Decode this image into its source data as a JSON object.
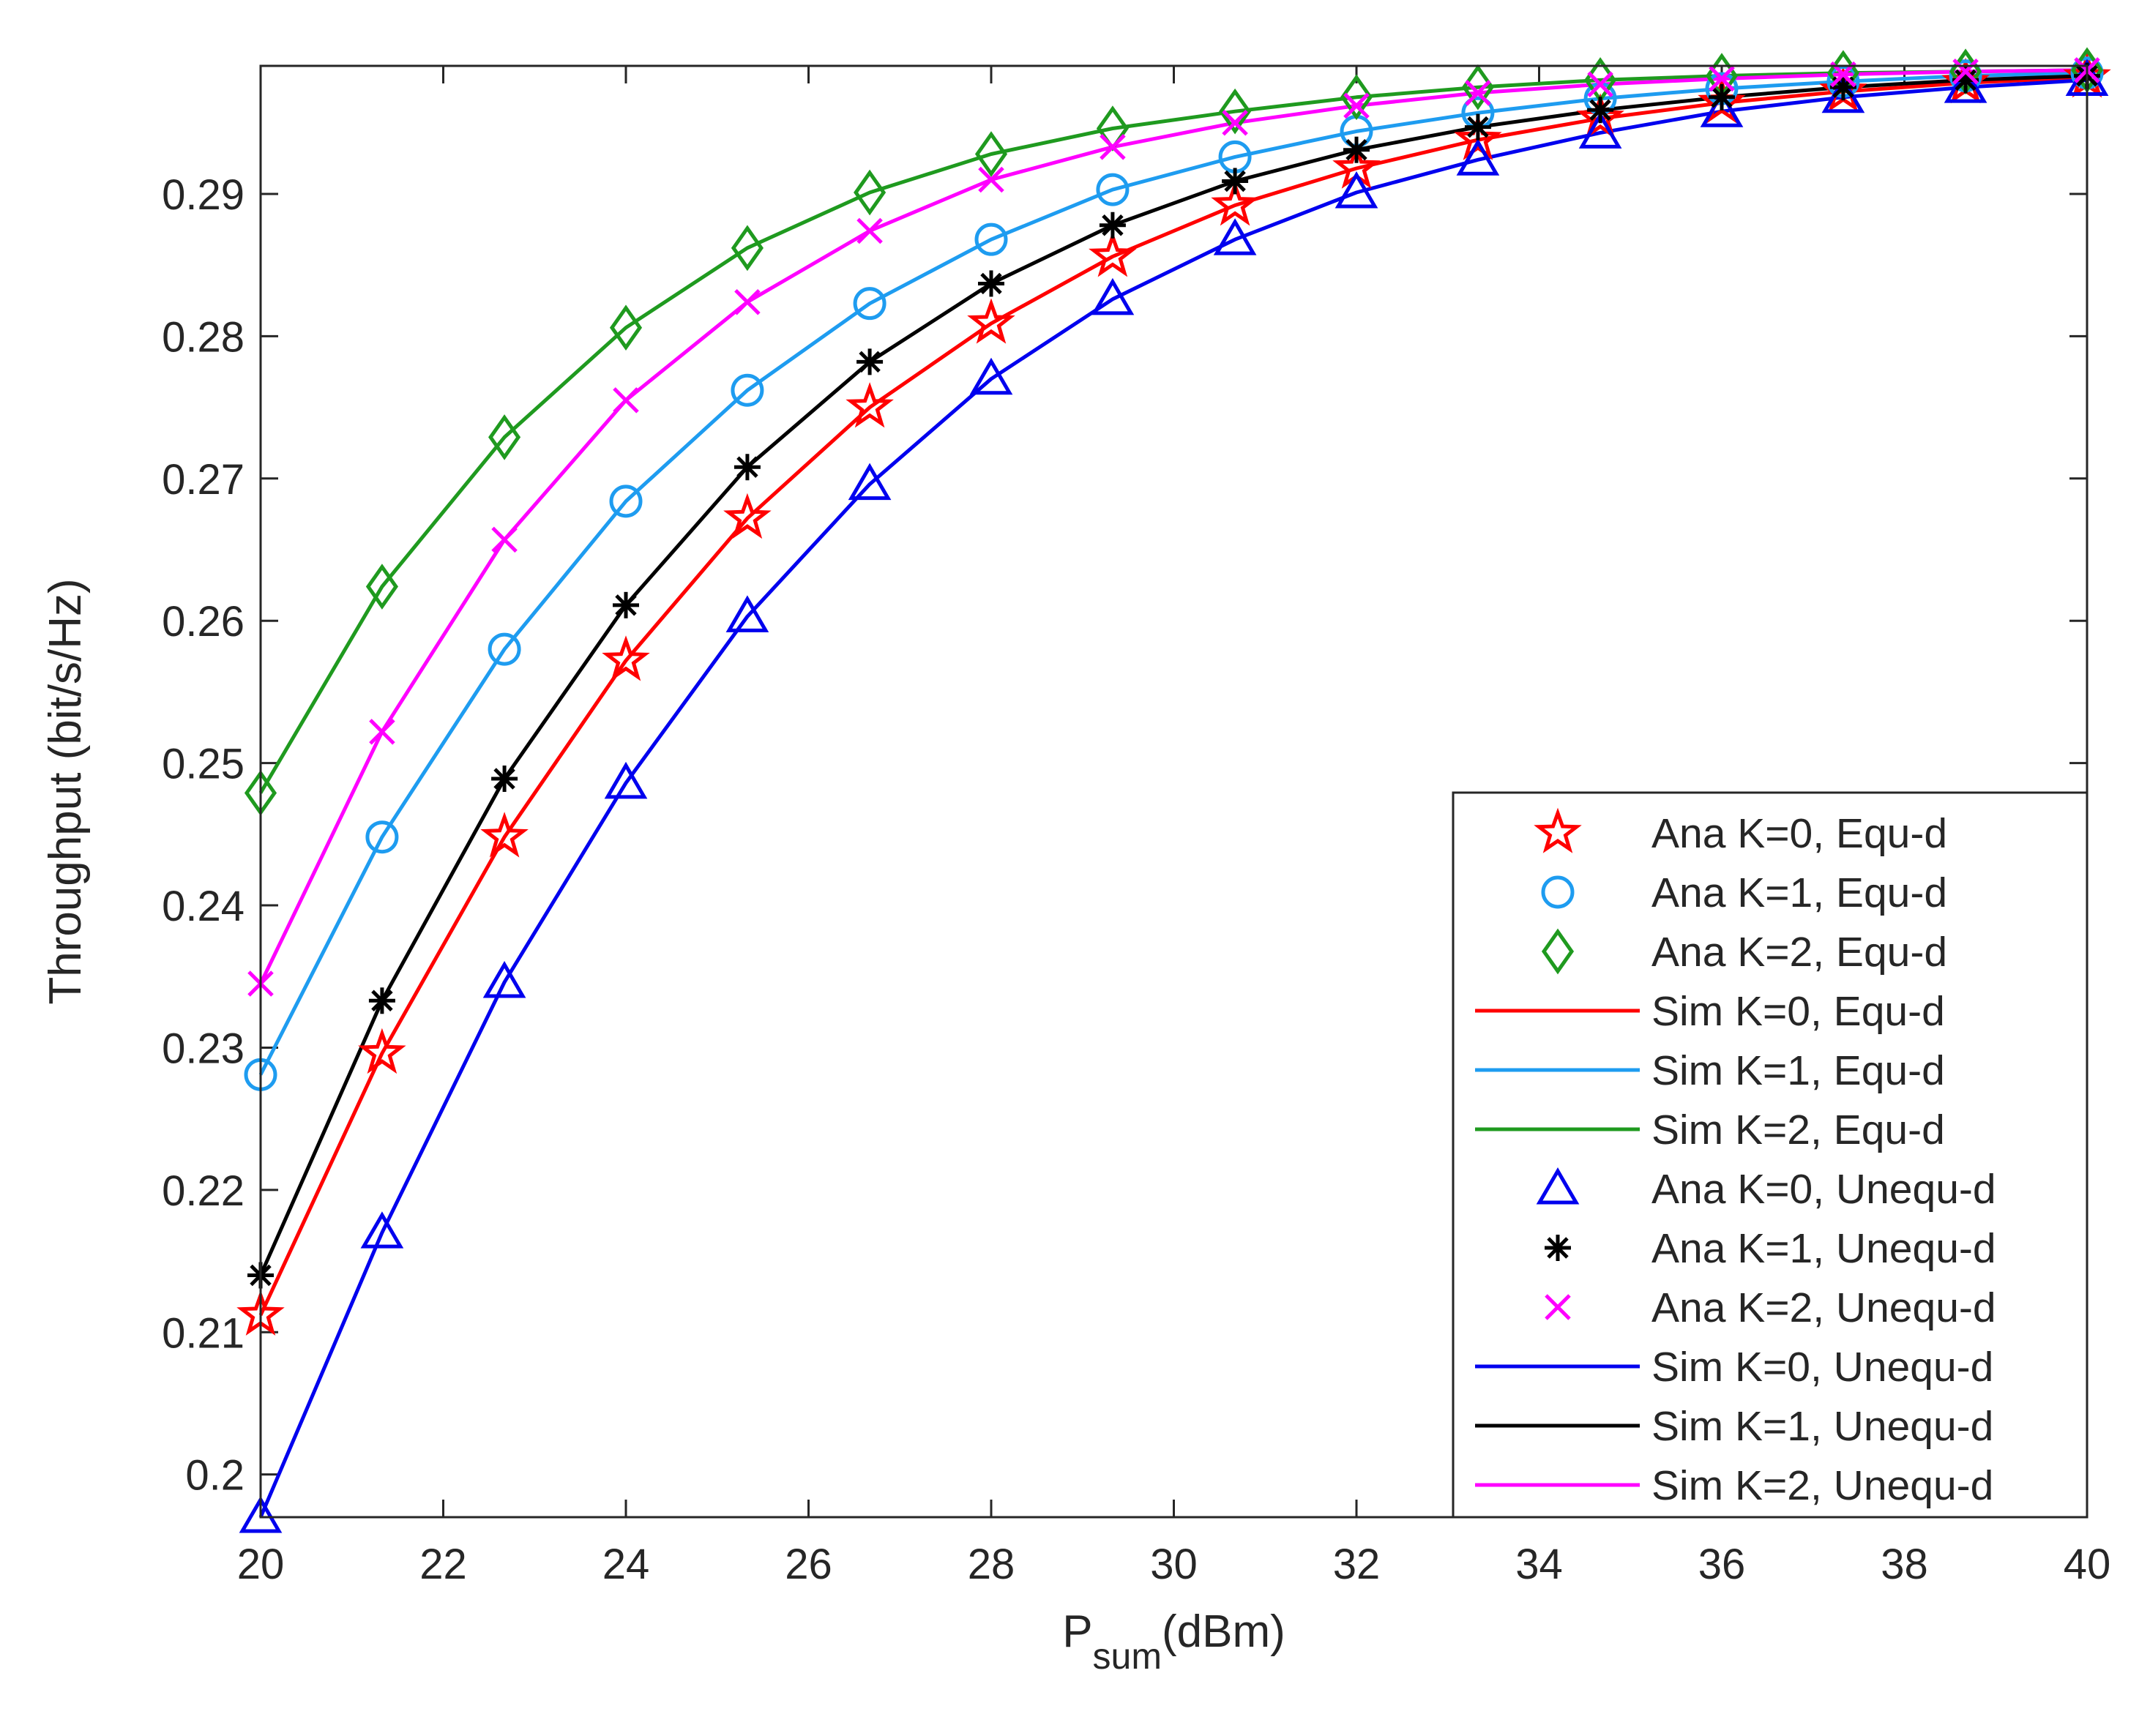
{
  "chart_data": {
    "type": "line",
    "title": "",
    "xlabel": {
      "main": "P",
      "sub": "sum",
      "unit": "(dBm)"
    },
    "ylabel": "Throughput (bit/s/Hz)",
    "xlim": [
      20,
      40
    ],
    "ylim": [
      0.197,
      0.299
    ],
    "xticks": [
      20,
      22,
      24,
      26,
      28,
      30,
      32,
      34,
      36,
      38,
      40
    ],
    "yticks": [
      0.2,
      0.21,
      0.22,
      0.23,
      0.24,
      0.25,
      0.26,
      0.27,
      0.28,
      0.29
    ],
    "ytick_labels": [
      "0.2",
      "0.21",
      "0.22",
      "0.23",
      "0.24",
      "0.25",
      "0.26",
      "0.27",
      "0.28",
      "0.29"
    ],
    "grid": false,
    "legend_position": "bottom-right",
    "x": [
      20,
      21.33,
      22.67,
      24,
      25.33,
      26.67,
      28,
      29.33,
      30.67,
      32,
      33.33,
      34.67,
      36,
      37.33,
      38.67,
      40
    ],
    "series": [
      {
        "name": "Ana K=0, Equ-d",
        "kind": "marker",
        "marker": "star",
        "color": "#ff0000",
        "values": [
          0.2112,
          0.2296,
          0.2448,
          0.2572,
          0.2672,
          0.275,
          0.2809,
          0.2856,
          0.2892,
          0.2918,
          0.2938,
          0.2953,
          0.2964,
          0.2972,
          0.2978,
          0.2982
        ]
      },
      {
        "name": "Ana K=1, Equ-d",
        "kind": "marker",
        "marker": "circle",
        "color": "#1e9cf0",
        "values": [
          0.2281,
          0.2448,
          0.258,
          0.2684,
          0.2762,
          0.2823,
          0.2868,
          0.2903,
          0.2926,
          0.2944,
          0.2957,
          0.2967,
          0.2974,
          0.2979,
          0.2983,
          0.2985
        ]
      },
      {
        "name": "Ana K=2, Equ-d",
        "kind": "marker",
        "marker": "diamond",
        "color": "#1f9a1f",
        "values": [
          0.2479,
          0.2624,
          0.2729,
          0.2806,
          0.2862,
          0.2901,
          0.2928,
          0.2946,
          0.2958,
          0.2968,
          0.2975,
          0.298,
          0.2983,
          0.2985,
          0.2986,
          0.2987
        ]
      },
      {
        "name": "Sim K=0, Equ-d",
        "kind": "line",
        "color": "#ff0000",
        "values": [
          0.2112,
          0.2296,
          0.2448,
          0.2572,
          0.2672,
          0.275,
          0.2809,
          0.2856,
          0.2892,
          0.2918,
          0.2938,
          0.2953,
          0.2964,
          0.2972,
          0.2978,
          0.2982
        ]
      },
      {
        "name": "Sim K=1, Equ-d",
        "kind": "line",
        "color": "#1e9cf0",
        "values": [
          0.2281,
          0.2448,
          0.258,
          0.2684,
          0.2762,
          0.2823,
          0.2868,
          0.2903,
          0.2926,
          0.2944,
          0.2957,
          0.2967,
          0.2974,
          0.2979,
          0.2983,
          0.2985
        ]
      },
      {
        "name": "Sim K=2, Equ-d",
        "kind": "line",
        "color": "#1f9a1f",
        "values": [
          0.2479,
          0.2624,
          0.2729,
          0.2806,
          0.2862,
          0.2901,
          0.2928,
          0.2946,
          0.2958,
          0.2968,
          0.2975,
          0.298,
          0.2983,
          0.2985,
          0.2986,
          0.2987
        ]
      },
      {
        "name": "Ana K=0, Unequ-d",
        "kind": "marker",
        "marker": "triangle",
        "color": "#0000ee",
        "values": [
          0.197,
          0.217,
          0.2346,
          0.2486,
          0.2603,
          0.2696,
          0.277,
          0.2826,
          0.2868,
          0.2901,
          0.2924,
          0.2943,
          0.2958,
          0.2968,
          0.2975,
          0.298
        ]
      },
      {
        "name": "Ana K=1, Unequ-d",
        "kind": "marker",
        "marker": "asterisk",
        "color": "#000000",
        "values": [
          0.214,
          0.2333,
          0.2489,
          0.2611,
          0.2708,
          0.2782,
          0.2837,
          0.2878,
          0.2909,
          0.2931,
          0.2947,
          0.2959,
          0.2968,
          0.2975,
          0.298,
          0.2983
        ]
      },
      {
        "name": "Ana K=2, Unequ-d",
        "kind": "marker",
        "marker": "cross",
        "color": "#ff00ff",
        "values": [
          0.2345,
          0.2522,
          0.2657,
          0.2755,
          0.2824,
          0.2874,
          0.291,
          0.2933,
          0.295,
          0.2962,
          0.2971,
          0.2977,
          0.2981,
          0.2984,
          0.2986,
          0.2987
        ]
      },
      {
        "name": "Sim K=0, Unequ-d",
        "kind": "line",
        "color": "#0000ee",
        "values": [
          0.197,
          0.217,
          0.2346,
          0.2486,
          0.2603,
          0.2696,
          0.277,
          0.2826,
          0.2868,
          0.2901,
          0.2924,
          0.2943,
          0.2958,
          0.2968,
          0.2975,
          0.298
        ]
      },
      {
        "name": "Sim K=1, Unequ-d",
        "kind": "line",
        "color": "#000000",
        "values": [
          0.214,
          0.2333,
          0.2489,
          0.2611,
          0.2708,
          0.2782,
          0.2837,
          0.2878,
          0.2909,
          0.2931,
          0.2947,
          0.2959,
          0.2968,
          0.2975,
          0.298,
          0.2983
        ]
      },
      {
        "name": "Sim K=2, Unequ-d",
        "kind": "line",
        "color": "#ff00ff",
        "values": [
          0.2345,
          0.2522,
          0.2657,
          0.2755,
          0.2824,
          0.2874,
          0.291,
          0.2933,
          0.295,
          0.2962,
          0.2971,
          0.2977,
          0.2981,
          0.2984,
          0.2986,
          0.2987
        ]
      }
    ]
  }
}
